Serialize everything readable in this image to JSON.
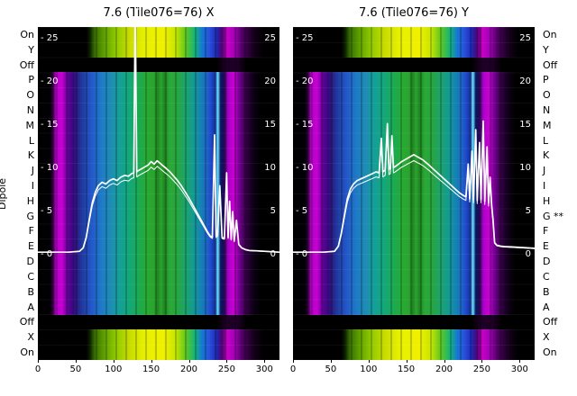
{
  "ylabel": "Dipole",
  "plots": [
    {
      "title": "7.6 (Tile076=76) X"
    },
    {
      "title": "7.6 (Tile076=76) Y"
    }
  ],
  "row_labels_left": [
    "On",
    "Y",
    "Off",
    "P",
    "O",
    "N",
    "M",
    "L",
    "K",
    "J",
    "I",
    "H",
    "G",
    "F",
    "E",
    "D",
    "C",
    "B",
    "A",
    "Off",
    "X",
    "On"
  ],
  "row_labels_right": [
    "On",
    "Y",
    "Off",
    "P",
    "O",
    "N",
    "M",
    "L",
    "K",
    "J",
    "I",
    "H",
    "G **",
    "F",
    "E",
    "D",
    "C",
    "B",
    "A",
    "Off",
    "X",
    "On"
  ],
  "axes": {
    "x_range": [
      0,
      320
    ],
    "y_range": [
      -12.2,
      26.4
    ],
    "x_ticks": [
      0,
      50,
      100,
      150,
      200,
      250,
      300
    ],
    "y_ticks": [
      25,
      20,
      15,
      10,
      5,
      0
    ]
  },
  "heatmap": {
    "row_structure": [
      {
        "kind": "edge",
        "rows": 2
      },
      {
        "kind": "off",
        "rows": 1
      },
      {
        "kind": "main",
        "rows": 16
      },
      {
        "kind": "off",
        "rows": 1
      },
      {
        "kind": "edge",
        "rows": 2
      }
    ],
    "main_stops": [
      [
        0.0,
        "#000000"
      ],
      [
        0.05,
        "#020006"
      ],
      [
        0.062,
        "#2a0034"
      ],
      [
        0.075,
        "#b400c8"
      ],
      [
        0.1,
        "#c800d2"
      ],
      [
        0.122,
        "#64009b"
      ],
      [
        0.148,
        "#320a78"
      ],
      [
        0.185,
        "#1e3ca0"
      ],
      [
        0.22,
        "#2356c8"
      ],
      [
        0.26,
        "#1e78c8"
      ],
      [
        0.3,
        "#1e8cb4"
      ],
      [
        0.34,
        "#14a096"
      ],
      [
        0.38,
        "#14a878"
      ],
      [
        0.42,
        "#1caa50"
      ],
      [
        0.455,
        "#28aa32"
      ],
      [
        0.48,
        "#2aa42e"
      ],
      [
        0.495,
        "#1e8220"
      ],
      [
        0.51,
        "#2aa42e"
      ],
      [
        0.525,
        "#1e8220"
      ],
      [
        0.545,
        "#2aa936"
      ],
      [
        0.575,
        "#27a53f"
      ],
      [
        0.605,
        "#1ea464"
      ],
      [
        0.64,
        "#149c8c"
      ],
      [
        0.675,
        "#1482b4"
      ],
      [
        0.7,
        "#1e64c8"
      ],
      [
        0.718,
        "#1e46c8"
      ],
      [
        0.733,
        "#16309b"
      ],
      [
        0.745,
        "#64e6ff"
      ],
      [
        0.756,
        "#0a1464"
      ],
      [
        0.77,
        "#1e0a50"
      ],
      [
        0.788,
        "#aa00c8"
      ],
      [
        0.81,
        "#c800d2"
      ],
      [
        0.832,
        "#780096"
      ],
      [
        0.856,
        "#3c0050"
      ],
      [
        0.885,
        "#140020"
      ],
      [
        0.92,
        "#000000"
      ],
      [
        1.0,
        "#000000"
      ]
    ],
    "edge_stops": [
      [
        0.0,
        "#000000"
      ],
      [
        0.2,
        "#000000"
      ],
      [
        0.215,
        "#0a1e00"
      ],
      [
        0.235,
        "#376e00"
      ],
      [
        0.27,
        "#5a9b00"
      ],
      [
        0.32,
        "#8cc800"
      ],
      [
        0.38,
        "#c8dc00"
      ],
      [
        0.44,
        "#e6f000"
      ],
      [
        0.52,
        "#f0f000"
      ],
      [
        0.57,
        "#c8e600"
      ],
      [
        0.61,
        "#64c81e"
      ],
      [
        0.65,
        "#14b478"
      ],
      [
        0.68,
        "#1478d2"
      ],
      [
        0.71,
        "#2850dc"
      ],
      [
        0.74,
        "#1e28b4"
      ],
      [
        0.763,
        "#50006e"
      ],
      [
        0.785,
        "#c800c8"
      ],
      [
        0.815,
        "#a000b4"
      ],
      [
        0.845,
        "#500064"
      ],
      [
        0.885,
        "#1e0028"
      ],
      [
        0.93,
        "#000000"
      ],
      [
        1.0,
        "#000000"
      ]
    ],
    "off_stops": [
      [
        0.0,
        "#000000"
      ],
      [
        0.74,
        "#000000"
      ],
      [
        0.78,
        "#1e0026"
      ],
      [
        0.825,
        "#1e0026"
      ],
      [
        0.865,
        "#000000"
      ],
      [
        1.0,
        "#000000"
      ]
    ],
    "line_color": "#ffffff",
    "tick_label_color_inner": "#ffffff",
    "tick_label_color_outer": "#000000"
  },
  "chart_data": [
    {
      "type": "heatmap",
      "title": "7.6 (Tile076=76) X",
      "xlim": [
        0,
        320
      ],
      "x_ticks": [
        0,
        50,
        100,
        150,
        200,
        250,
        300
      ],
      "value_ticks": [
        0,
        5,
        10,
        15,
        20,
        25
      ],
      "rows": [
        "On",
        "Y",
        "Off",
        "P",
        "O",
        "N",
        "M",
        "L",
        "K",
        "J",
        "I",
        "H",
        "G",
        "F",
        "E",
        "D",
        "C",
        "B",
        "A",
        "Off",
        "X",
        "On"
      ],
      "overlay_line": {
        "name": "bandpass power (X pol)",
        "x": [
          0,
          40,
          55,
          60,
          64,
          68,
          72,
          76,
          80,
          85,
          90,
          95,
          100,
          105,
          110,
          115,
          120,
          124,
          127,
          129,
          131,
          134,
          138,
          142,
          146,
          150,
          154,
          158,
          162,
          166,
          170,
          175,
          180,
          185,
          190,
          195,
          200,
          205,
          210,
          215,
          220,
          225,
          228,
          231,
          234,
          236,
          238,
          241,
          244,
          247,
          250,
          252,
          254,
          256,
          258,
          260,
          263,
          266,
          270,
          275,
          280,
          290,
          300,
          310,
          320
        ],
        "y": [
          0.3,
          0.3,
          0.4,
          0.8,
          2.0,
          4.0,
          6.0,
          7.2,
          8.0,
          8.4,
          8.2,
          8.6,
          8.8,
          8.6,
          9.0,
          9.2,
          9.1,
          9.4,
          9.5,
          29.0,
          9.6,
          9.8,
          10.0,
          10.2,
          10.4,
          10.8,
          10.5,
          10.9,
          10.6,
          10.3,
          10.0,
          9.6,
          9.1,
          8.6,
          8.0,
          7.3,
          6.6,
          5.8,
          5.0,
          4.2,
          3.4,
          2.6,
          2.2,
          2.0,
          13.9,
          2.1,
          2.3,
          8.0,
          2.0,
          1.9,
          9.5,
          2.0,
          6.2,
          1.8,
          5.0,
          1.6,
          4.0,
          1.2,
          0.8,
          0.6,
          0.5,
          0.45,
          0.4,
          0.35,
          0.3
        ]
      }
    },
    {
      "type": "heatmap",
      "title": "7.6 (Tile076=76) Y",
      "xlim": [
        0,
        320
      ],
      "x_ticks": [
        0,
        50,
        100,
        150,
        200,
        250,
        300
      ],
      "value_ticks": [
        0,
        5,
        10,
        15,
        20,
        25
      ],
      "rows": [
        "On",
        "Y",
        "Off",
        "P",
        "O",
        "N",
        "M",
        "L",
        "K",
        "J",
        "I",
        "H",
        "G **",
        "F",
        "E",
        "D",
        "C",
        "B",
        "A",
        "Off",
        "X",
        "On"
      ],
      "overlay_line": {
        "name": "bandpass power (Y pol)",
        "x": [
          0,
          40,
          55,
          60,
          64,
          68,
          72,
          76,
          80,
          85,
          90,
          95,
          100,
          105,
          110,
          114,
          117,
          119,
          122,
          125,
          127,
          129,
          131,
          133,
          135,
          138,
          141,
          144,
          148,
          152,
          156,
          160,
          164,
          168,
          172,
          176,
          180,
          185,
          190,
          195,
          200,
          205,
          210,
          215,
          220,
          225,
          229,
          232,
          234,
          237,
          239,
          242,
          244,
          247,
          249,
          252,
          254,
          257,
          259,
          261,
          263,
          265,
          267,
          270,
          275,
          280,
          290,
          300,
          310,
          320
        ],
        "y": [
          0.3,
          0.3,
          0.4,
          1.0,
          2.5,
          4.5,
          6.5,
          7.6,
          8.2,
          8.6,
          8.8,
          9.0,
          9.2,
          9.4,
          9.6,
          9.5,
          13.5,
          9.6,
          9.8,
          15.2,
          9.9,
          10.0,
          13.8,
          10.1,
          10.2,
          10.4,
          10.6,
          10.8,
          11.0,
          11.2,
          11.4,
          11.6,
          11.4,
          11.2,
          11.0,
          10.7,
          10.4,
          10.0,
          9.6,
          9.2,
          8.8,
          8.4,
          8.0,
          7.6,
          7.2,
          6.9,
          6.7,
          10.5,
          6.5,
          12.0,
          6.4,
          14.5,
          6.3,
          13.0,
          6.4,
          15.5,
          6.2,
          12.5,
          6.0,
          9.0,
          5.8,
          4.0,
          1.4,
          1.1,
          1.0,
          0.95,
          0.9,
          0.85,
          0.8,
          0.75
        ]
      }
    }
  ]
}
